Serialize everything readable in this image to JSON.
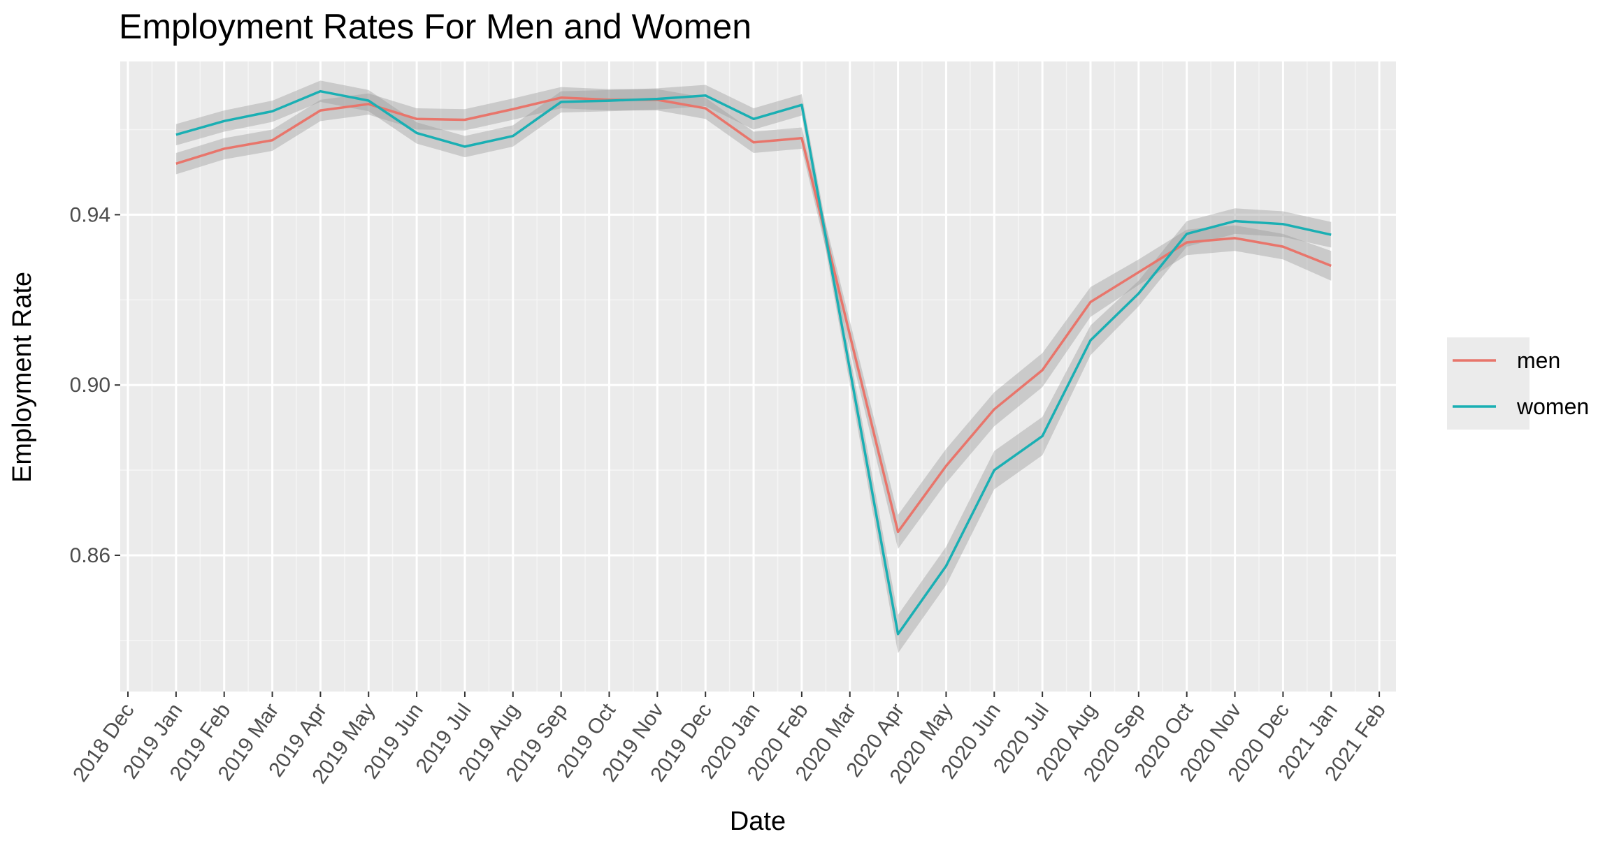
{
  "chart_data": {
    "type": "line",
    "title": "Employment Rates For Men and Women",
    "xlabel": "Date",
    "ylabel": "Employment Rate",
    "x_ticks": [
      "2018 Dec",
      "2019 Jan",
      "2019 Feb",
      "2019 Mar",
      "2019 Apr",
      "2019 May",
      "2019 Jun",
      "2019 Jul",
      "2019 Aug",
      "2019 Sep",
      "2019 Oct",
      "2019 Nov",
      "2019 Dec",
      "2020 Jan",
      "2020 Feb",
      "2020 Mar",
      "2020 Apr",
      "2020 May",
      "2020 Jun",
      "2020 Jul",
      "2020 Aug",
      "2020 Sep",
      "2020 Oct",
      "2020 Nov",
      "2020 Dec",
      "2021 Jan",
      "2021 Feb"
    ],
    "x": [
      "2019 Jan",
      "2019 Feb",
      "2019 Mar",
      "2019 Apr",
      "2019 May",
      "2019 Jun",
      "2019 Jul",
      "2019 Aug",
      "2019 Sep",
      "2019 Oct",
      "2019 Nov",
      "2019 Dec",
      "2020 Jan",
      "2020 Feb",
      "2020 Apr",
      "2020 May",
      "2020 Jun",
      "2020 Jul",
      "2020 Aug",
      "2020 Sep",
      "2020 Oct",
      "2020 Nov",
      "2020 Dec",
      "2021 Jan"
    ],
    "y_ticks": [
      0.86,
      0.9,
      0.94
    ],
    "y_tick_labels": [
      "0.86",
      "0.90",
      "0.94"
    ],
    "ylim": [
      0.828,
      0.976
    ],
    "grid": true,
    "legend_position": "right",
    "series": [
      {
        "name": "men",
        "color": "#e8756b",
        "values": [
          0.952,
          0.9555,
          0.9575,
          0.9645,
          0.966,
          0.9625,
          0.9623,
          0.9648,
          0.9675,
          0.967,
          0.967,
          0.965,
          0.957,
          0.958,
          0.8655,
          0.881,
          0.8943,
          0.9035,
          0.9195,
          0.9265,
          0.9335,
          0.9345,
          0.9325,
          0.928
        ],
        "band": [
          0.0025,
          0.0025,
          0.0025,
          0.0025,
          0.0025,
          0.0025,
          0.0025,
          0.0025,
          0.0025,
          0.0025,
          0.0025,
          0.0025,
          0.0025,
          0.0025,
          0.004,
          0.004,
          0.004,
          0.004,
          0.0035,
          0.003,
          0.003,
          0.003,
          0.003,
          0.0035
        ]
      },
      {
        "name": "women",
        "color": "#1aafb3",
        "values": [
          0.9588,
          0.962,
          0.9643,
          0.969,
          0.9668,
          0.9592,
          0.956,
          0.9585,
          0.9665,
          0.9668,
          0.9672,
          0.968,
          0.9625,
          0.9658,
          0.8415,
          0.8575,
          0.88,
          0.888,
          0.9105,
          0.9215,
          0.9355,
          0.9385,
          0.9378,
          0.9353
        ],
        "band": [
          0.0025,
          0.0025,
          0.0025,
          0.0025,
          0.0025,
          0.0025,
          0.0025,
          0.0025,
          0.0025,
          0.0025,
          0.0025,
          0.0025,
          0.0025,
          0.0025,
          0.0045,
          0.0045,
          0.0045,
          0.0045,
          0.0035,
          0.003,
          0.003,
          0.003,
          0.003,
          0.003
        ]
      }
    ]
  }
}
